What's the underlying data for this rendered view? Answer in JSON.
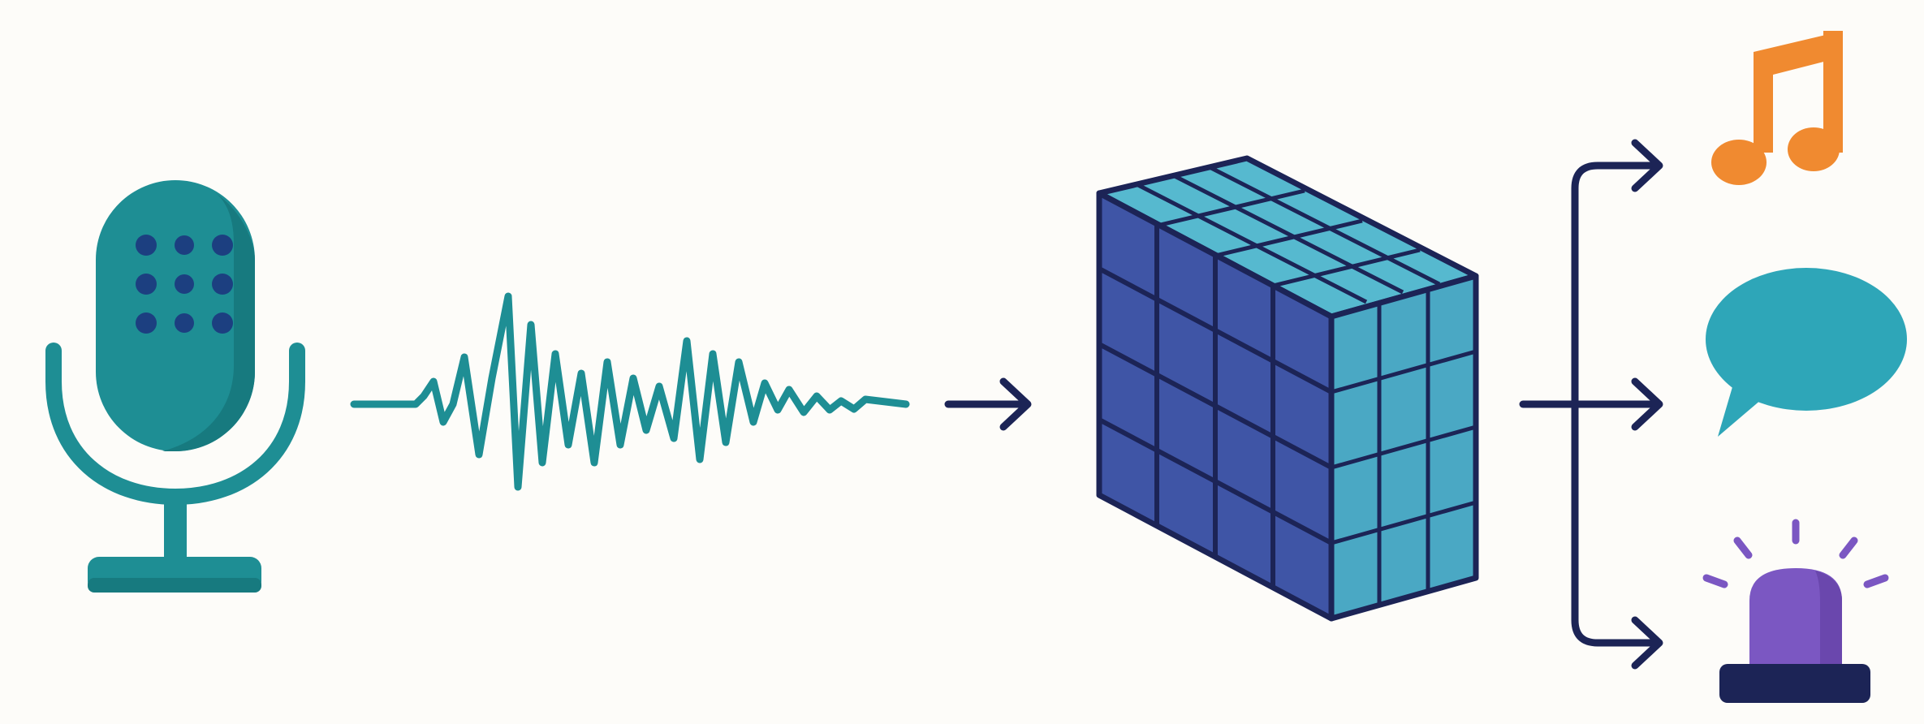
{
  "diagram": {
    "stages": [
      {
        "id": "input",
        "icon": "microphone-icon"
      },
      {
        "id": "signal",
        "icon": "audio-waveform-icon"
      },
      {
        "id": "model",
        "icon": "tensor-cube-icon"
      },
      {
        "id": "outputs",
        "icons": [
          "music-note-icon",
          "speech-bubble-icon",
          "siren-alarm-icon"
        ]
      }
    ],
    "colors": {
      "background": "#fdfcf9",
      "teal": "#1e8e94",
      "teal_dark": "#177a7f",
      "navy": "#1c2456",
      "cube_front": "#3f55a6",
      "cube_side": "#4aa8c4",
      "cube_top": "#56b9cf",
      "orange": "#f08a30",
      "speech": "#2ea6b8",
      "purple": "#7b57c2"
    }
  }
}
